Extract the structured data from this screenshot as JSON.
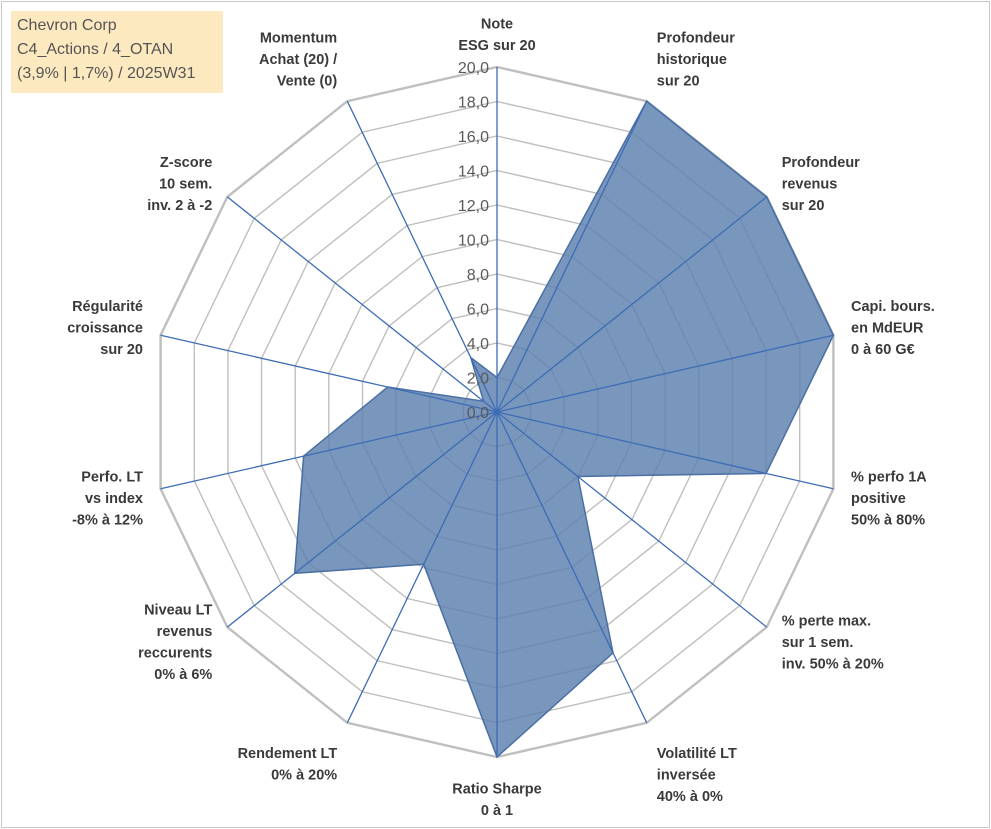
{
  "title": {
    "line1": "Chevron Corp",
    "line2": "C4_Actions / 4_OTAN",
    "line3": "(3,9% | 1,7%) / 2025W31"
  },
  "colors": {
    "fill": "#5b7fae",
    "outline": "#4a6fa3",
    "spoke": "#3d6cb5",
    "grid": "#bfbfbf",
    "title_bg": "#fde9bf"
  },
  "chart_data": {
    "type": "radar",
    "title": "",
    "range": [
      0,
      20
    ],
    "tick_step": 2,
    "tick_labels": [
      "0,0",
      "2,0",
      "4,0",
      "6,0",
      "8,0",
      "10,0",
      "12,0",
      "14,0",
      "16,0",
      "18,0",
      "20,0"
    ],
    "categories": [
      [
        "Note",
        "ESG sur 20"
      ],
      [
        "Profondeur",
        "historique",
        "sur 20"
      ],
      [
        "Profondeur",
        "revenus",
        "sur 20"
      ],
      [
        "Capi. bours.",
        "en MdEUR",
        "0 à 60 G€"
      ],
      [
        "% perfo 1A",
        "positive",
        "50% à 80%"
      ],
      [
        "% perte max.",
        "sur 1 sem.",
        "inv. 50% à 20%"
      ],
      [
        "Volatilité LT",
        "inversée",
        "40% à 0%"
      ],
      [
        "Ratio Sharpe",
        "0 à 1"
      ],
      [
        "Rendement LT",
        "0% à 20%"
      ],
      [
        "Niveau LT",
        "revenus",
        "reccurents",
        "0% à 6%"
      ],
      [
        "Perfo. LT",
        "vs index",
        "-8% à 12%"
      ],
      [
        "Régularité",
        "croissance",
        "sur 20"
      ],
      [
        "Z-score",
        "10 sem.",
        "inv. 2 à -2"
      ],
      [
        "Momentum",
        "Achat (20) /",
        "Vente (0)"
      ]
    ],
    "series": [
      {
        "values": [
          2.0,
          20.0,
          20.0,
          20.0,
          16.0,
          6.0,
          15.5,
          20.0,
          9.8,
          15.0,
          11.5,
          6.5,
          1.0,
          3.5
        ]
      }
    ],
    "grid": true,
    "legend": "none"
  }
}
